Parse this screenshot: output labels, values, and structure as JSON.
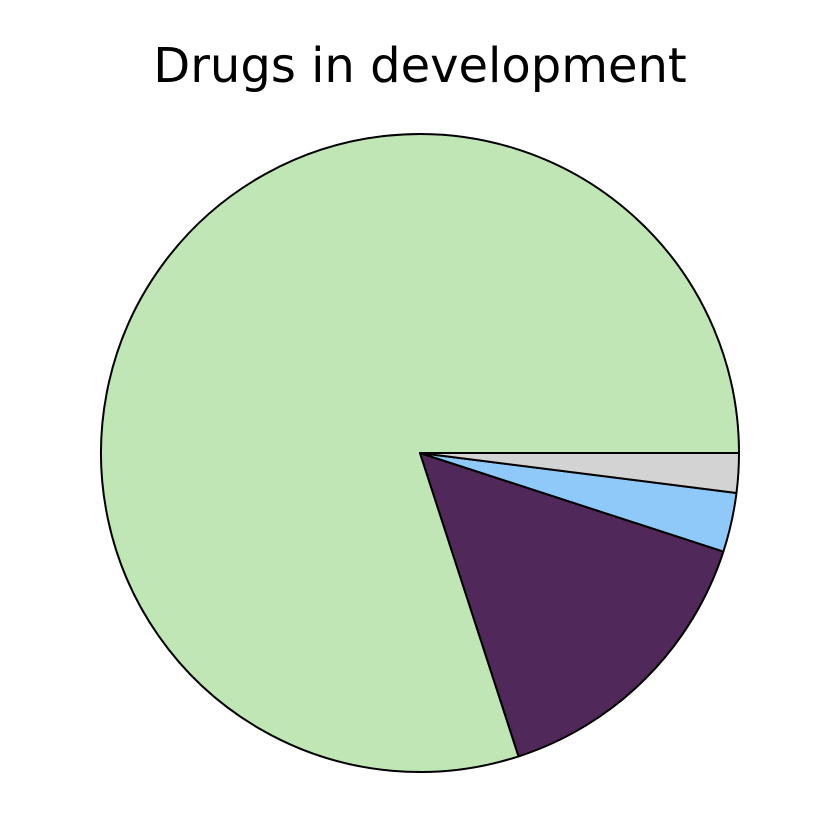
{
  "chart_data": {
    "type": "pie",
    "title": "Drugs in development",
    "start_angle_deg": 0,
    "direction": "counterclockwise",
    "slices": [
      {
        "value": 80.0,
        "color": "#bfe6b4"
      },
      {
        "value": 15.0,
        "color": "#51285a"
      },
      {
        "value": 3.0,
        "color": "#8fc9fa"
      },
      {
        "value": 2.0,
        "color": "#d3d3d3"
      }
    ],
    "edge_color": "#000000"
  }
}
